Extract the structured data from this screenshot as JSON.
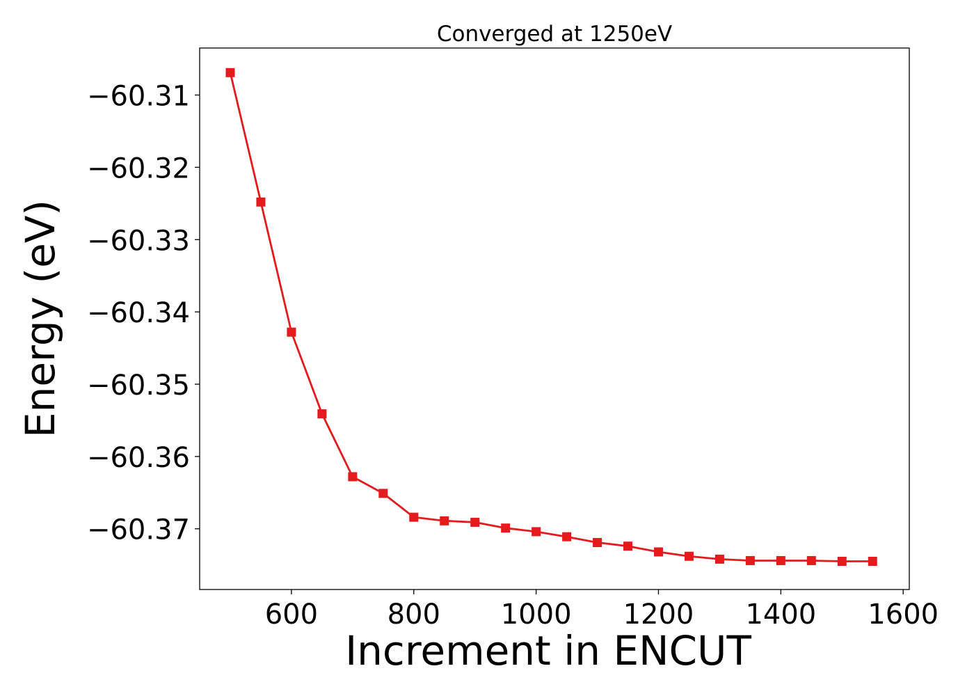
{
  "chart_data": {
    "type": "line",
    "title": "Converged at 1250eV",
    "xlabel": "Increment in ENCUT",
    "ylabel": "Energy (eV)",
    "xlim": [
      450,
      1610
    ],
    "ylim": [
      -60.3784,
      -60.3035
    ],
    "xticks": [
      600,
      800,
      1000,
      1200,
      1400,
      1600
    ],
    "xtick_labels": [
      "600",
      "800",
      "1000",
      "1200",
      "1400",
      "1600"
    ],
    "yticks": [
      -60.31,
      -60.32,
      -60.33,
      -60.34,
      -60.35,
      -60.36,
      -60.37
    ],
    "ytick_labels": [
      "−60.31",
      "−60.32",
      "−60.33",
      "−60.34",
      "−60.35",
      "−60.36",
      "−60.37"
    ],
    "grid": false,
    "legend": false,
    "series": [
      {
        "color": "#e41a1c",
        "marker": "square",
        "x": [
          500,
          550,
          600,
          650,
          700,
          750,
          800,
          850,
          900,
          950,
          1000,
          1050,
          1100,
          1150,
          1200,
          1250,
          1300,
          1350,
          1400,
          1450,
          1500,
          1550
        ],
        "y": [
          -60.3069,
          -60.3248,
          -60.3428,
          -60.3541,
          -60.3628,
          -60.3651,
          -60.3684,
          -60.3689,
          -60.3691,
          -60.3699,
          -60.3704,
          -60.3711,
          -60.3719,
          -60.3724,
          -60.3732,
          -60.3738,
          -60.3742,
          -60.3744,
          -60.3744,
          -60.3744,
          -60.3745,
          -60.3745
        ]
      }
    ]
  }
}
